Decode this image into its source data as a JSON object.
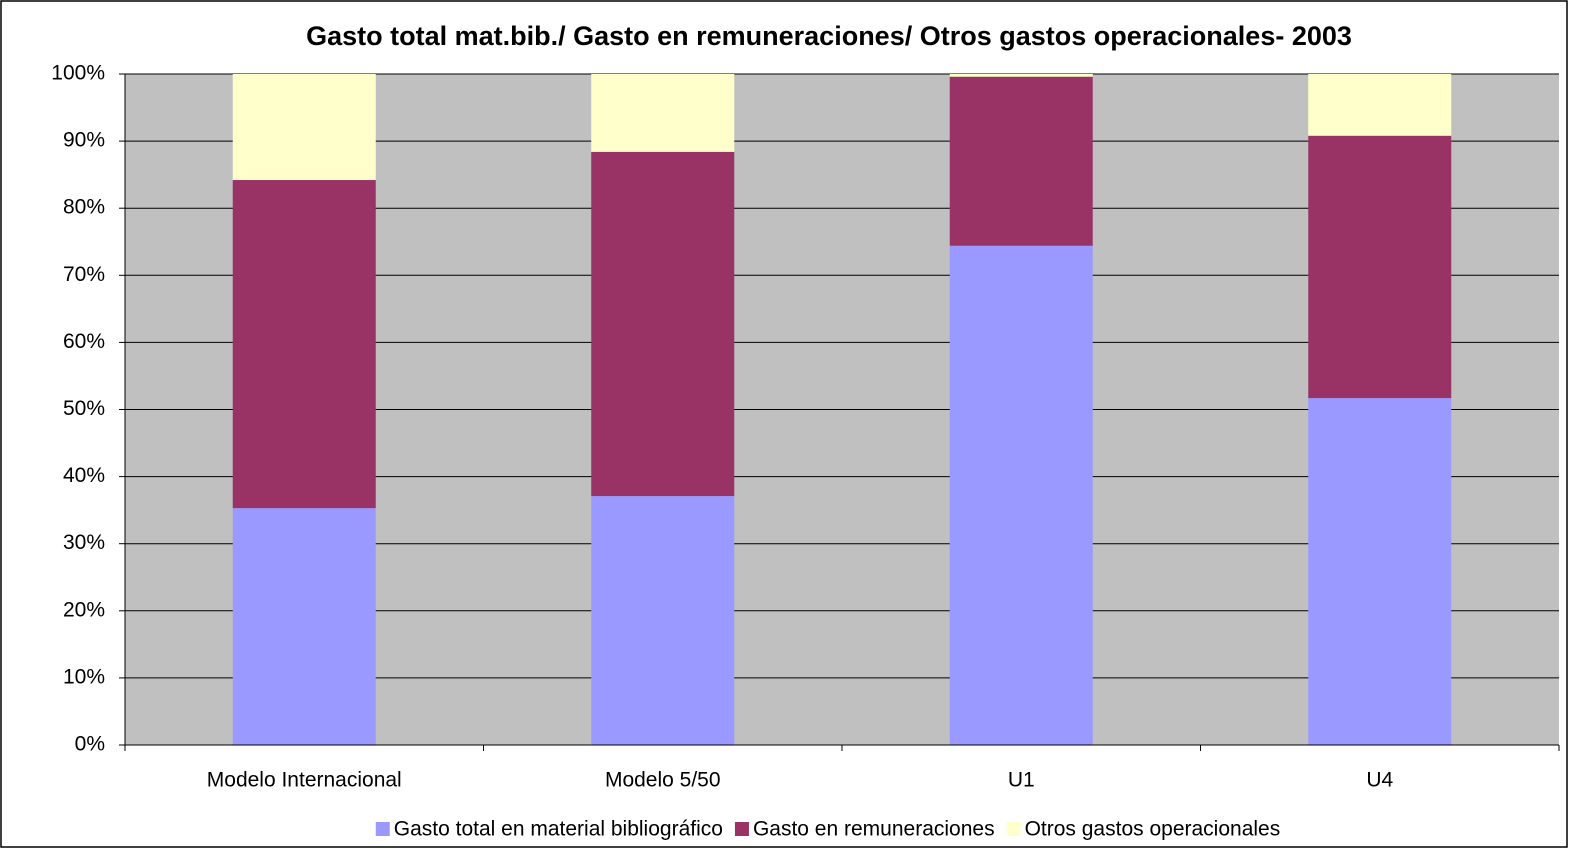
{
  "chart_data": {
    "type": "stacked_bar",
    "title": "Gasto total mat.bib./ Gasto en remuneraciones/ Otros gastos operacionales- 2003",
    "categories": [
      "Modelo Internacional",
      "Modelo  5/50",
      "U1",
      "U4"
    ],
    "series": [
      {
        "name": "Gasto total en material bibliográfico",
        "color": "#9999ff",
        "values": [
          35.3,
          37.1,
          74.4,
          51.7
        ]
      },
      {
        "name": "Gasto en remuneraciones",
        "color": "#993366",
        "values": [
          48.9,
          51.3,
          25.2,
          39.1
        ]
      },
      {
        "name": "Otros gastos operacionales",
        "color": "#ffffcc",
        "values": [
          15.8,
          11.6,
          0.4,
          9.2
        ]
      }
    ],
    "ylim": [
      0,
      100
    ],
    "yticks": [
      {
        "value": 0,
        "label": "0%"
      },
      {
        "value": 10,
        "label": "10%"
      },
      {
        "value": 20,
        "label": "20%"
      },
      {
        "value": 30,
        "label": "30%"
      },
      {
        "value": 40,
        "label": "40%"
      },
      {
        "value": 50,
        "label": "50%"
      },
      {
        "value": 60,
        "label": "60%"
      },
      {
        "value": 70,
        "label": "70%"
      },
      {
        "value": 80,
        "label": "80%"
      },
      {
        "value": 90,
        "label": "90%"
      },
      {
        "value": 100,
        "label": "100%"
      }
    ],
    "grid": true,
    "legend": "bottom"
  }
}
